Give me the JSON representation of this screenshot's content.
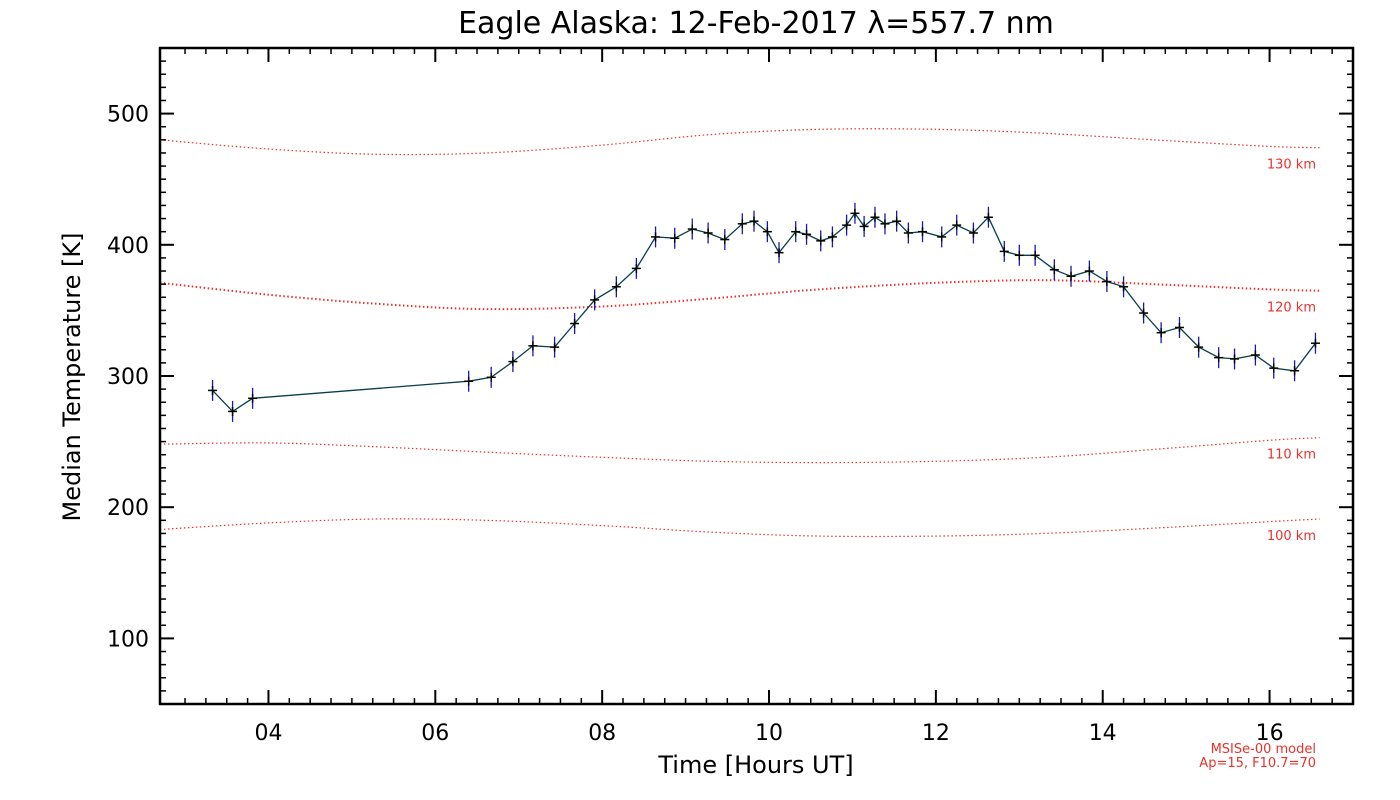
{
  "chart_data": {
    "type": "line",
    "title": "Eagle Alaska: 12-Feb-2017 λ=557.7 nm",
    "xlabel": "Time [Hours UT]",
    "ylabel": "Median Temperature [K]",
    "xlim": [
      2.7,
      17.0
    ],
    "ylim": [
      50,
      550
    ],
    "xticks": [
      4,
      6,
      8,
      10,
      12,
      14,
      16
    ],
    "xtick_labels": [
      "04",
      "06",
      "08",
      "10",
      "12",
      "14",
      "16"
    ],
    "yticks": [
      100,
      200,
      300,
      400,
      500
    ],
    "ytick_labels": [
      "100",
      "200",
      "300",
      "400",
      "500"
    ],
    "grid": false,
    "series": [
      {
        "color": "#0a3d4d",
        "marker_color": "#1a1aa8",
        "error": 8,
        "x": [
          3.33,
          3.57,
          3.81,
          6.4,
          6.67,
          6.93,
          7.17,
          7.43,
          7.67,
          7.91,
          8.17,
          8.41,
          8.64,
          8.87,
          9.08,
          9.27,
          9.47,
          9.68,
          9.82,
          9.98,
          10.12,
          10.32,
          10.45,
          10.62,
          10.76,
          10.93,
          11.03,
          11.14,
          11.27,
          11.39,
          11.53,
          11.67,
          11.84,
          12.07,
          12.25,
          12.45,
          12.63,
          12.82,
          13.0,
          13.19,
          13.42,
          13.62,
          13.84,
          14.05,
          14.25,
          14.49,
          14.7,
          14.92,
          15.15,
          15.39,
          15.58,
          15.83,
          16.05,
          16.3,
          16.55
        ],
        "y": [
          289,
          273,
          283,
          296,
          299,
          311,
          323,
          322,
          340,
          358,
          368,
          382,
          406,
          405,
          412,
          409,
          404,
          416,
          418,
          410,
          394,
          410,
          408,
          403,
          406,
          415,
          424,
          414,
          421,
          416,
          418,
          409,
          410,
          406,
          415,
          409,
          421,
          395,
          392,
          392,
          381,
          376,
          380,
          372,
          368,
          348,
          333,
          337,
          322,
          314,
          313,
          316,
          306,
          304,
          325
        ]
      }
    ],
    "model_curves": [
      {
        "label": "130 km",
        "color": "#e8322d",
        "x": [
          2.7,
          4.0,
          5.3,
          6.6,
          8.0,
          9.3,
          10.6,
          12.0,
          13.3,
          14.6,
          16.0,
          16.6
        ],
        "y": [
          480,
          473,
          469,
          470,
          476,
          484,
          488,
          488,
          485,
          480,
          475,
          474
        ]
      },
      {
        "label": "120 km",
        "color": "#e8322d",
        "x": [
          2.7,
          4.0,
          5.3,
          6.6,
          8.0,
          9.3,
          10.6,
          12.0,
          13.3,
          14.6,
          16.0,
          16.6
        ],
        "y": [
          371,
          362,
          355,
          351,
          353,
          359,
          366,
          371,
          373,
          370,
          366,
          365
        ]
      },
      {
        "label": "110 km",
        "color": "#e8322d",
        "x": [
          2.7,
          4.0,
          5.3,
          6.6,
          8.0,
          9.3,
          10.6,
          12.0,
          13.3,
          14.6,
          16.0,
          16.6
        ],
        "y": [
          248,
          249,
          246,
          242,
          238,
          235,
          234,
          235,
          238,
          244,
          251,
          253
        ]
      },
      {
        "label": "100 km",
        "color": "#e8322d",
        "x": [
          2.7,
          4.0,
          5.3,
          6.6,
          8.0,
          9.3,
          10.6,
          12.0,
          13.3,
          14.6,
          16.0,
          16.6
        ],
        "y": [
          183,
          188,
          191,
          190,
          186,
          181,
          178,
          178,
          180,
          184,
          189,
          191
        ]
      }
    ],
    "annotations": [
      "MSISe-00 model",
      "Ap=15, F10.7=70"
    ]
  }
}
